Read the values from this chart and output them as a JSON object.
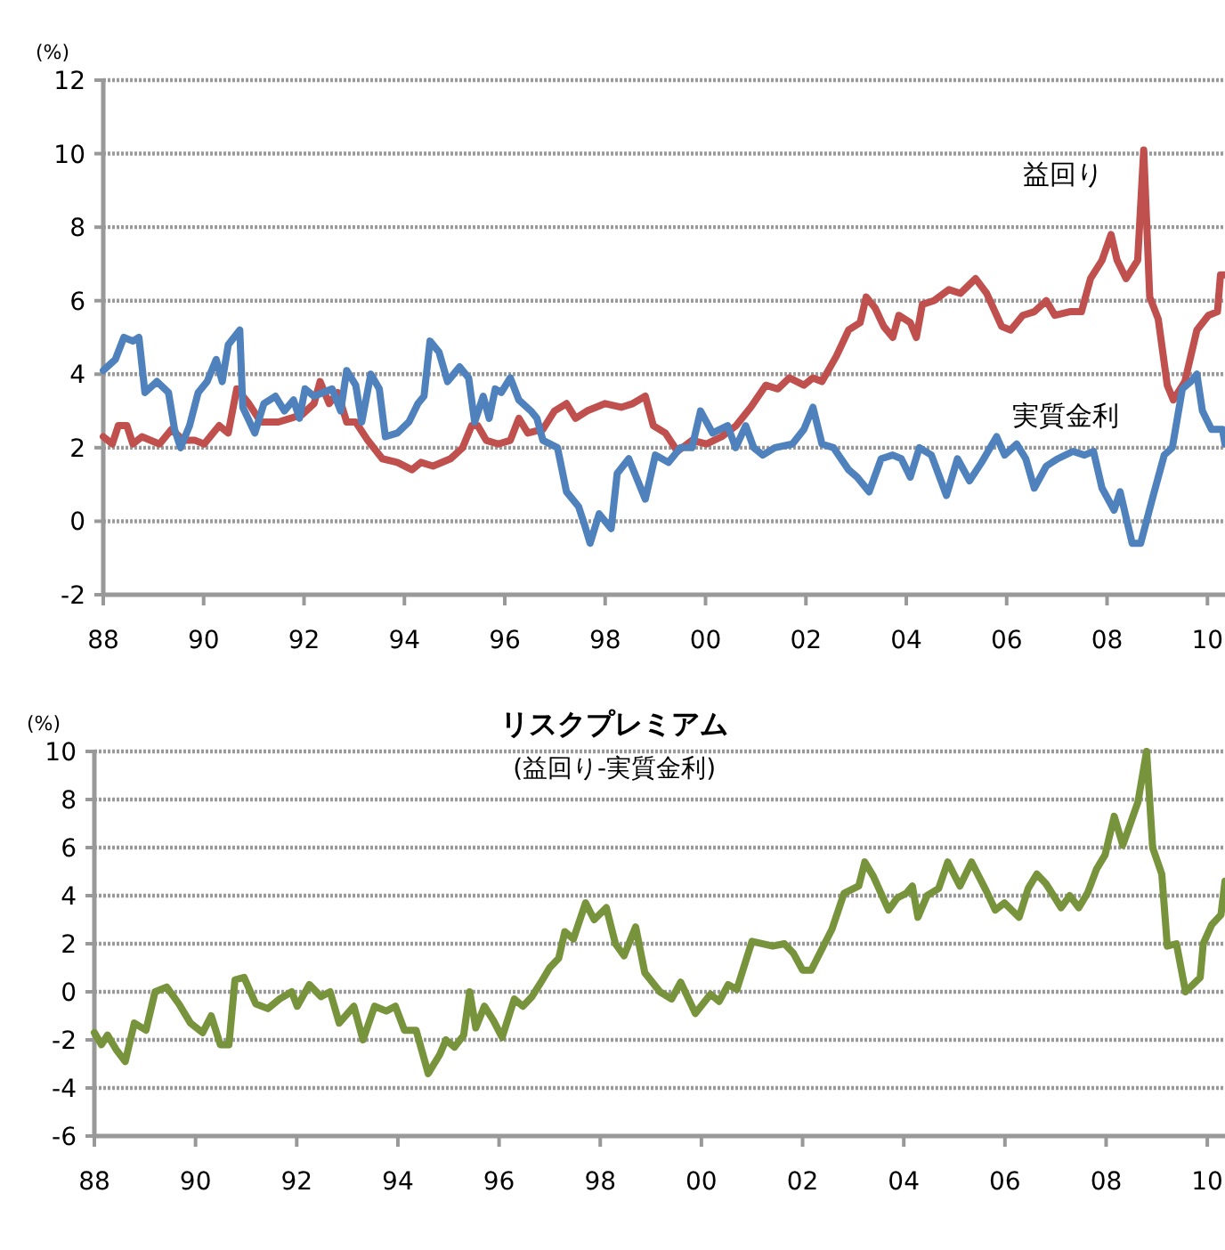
{
  "chart_data": [
    {
      "type": "line",
      "ylabel": "(%)",
      "legend": false,
      "grid": "y",
      "line_style": "solid",
      "marker": "none",
      "xlim": [
        1988,
        2010.35
      ],
      "ylim": [
        -2,
        12
      ],
      "xticks": [
        {
          "value": 1988,
          "label": "88"
        },
        {
          "value": 1990,
          "label": "90"
        },
        {
          "value": 1992,
          "label": "92"
        },
        {
          "value": 1994,
          "label": "94"
        },
        {
          "value": 1996,
          "label": "96"
        },
        {
          "value": 1998,
          "label": "98"
        },
        {
          "value": 2000,
          "label": "00"
        },
        {
          "value": 2002,
          "label": "02"
        },
        {
          "value": 2004,
          "label": "04"
        },
        {
          "value": 2006,
          "label": "06"
        },
        {
          "value": 2008,
          "label": "08"
        },
        {
          "value": 2010,
          "label": "10"
        }
      ],
      "yticks": [
        -2,
        0,
        2,
        4,
        6,
        8,
        10,
        12
      ],
      "series": [
        {
          "name": "益回り",
          "color": "#c0504d",
          "x": [
            1988.0,
            1988.18,
            1988.3,
            1988.47,
            1988.59,
            1988.77,
            1989.12,
            1989.36,
            1989.6,
            1989.83,
            1990.01,
            1990.31,
            1990.49,
            1990.66,
            1990.9,
            1991.14,
            1991.49,
            1991.73,
            1991.96,
            1992.2,
            1992.32,
            1992.5,
            1992.67,
            1992.85,
            1993.03,
            1993.27,
            1993.56,
            1993.86,
            1994.15,
            1994.33,
            1994.57,
            1994.92,
            1995.16,
            1995.34,
            1995.46,
            1995.63,
            1995.87,
            1996.11,
            1996.28,
            1996.46,
            1996.76,
            1996.99,
            1997.23,
            1997.41,
            1997.64,
            1998.0,
            1998.32,
            1998.55,
            1998.8,
            1998.96,
            1999.2,
            1999.44,
            1999.73,
            2000.02,
            2000.32,
            2000.61,
            2000.9,
            2001.2,
            2001.44,
            2001.67,
            2001.96,
            2002.14,
            2002.32,
            2002.61,
            2002.85,
            2003.08,
            2003.2,
            2003.38,
            2003.55,
            2003.73,
            2003.85,
            2004.08,
            2004.2,
            2004.32,
            2004.55,
            2004.85,
            2005.08,
            2005.38,
            2005.6,
            2005.9,
            2006.08,
            2006.32,
            2006.55,
            2006.79,
            2006.96,
            2007.26,
            2007.49,
            2007.67,
            2007.9,
            2008.08,
            2008.2,
            2008.38,
            2008.61,
            2008.73,
            2008.85,
            2009.02,
            2009.2,
            2009.32,
            2009.55,
            2009.79,
            2010.02,
            2010.2,
            2010.26,
            2010.35
          ],
          "values": [
            2.3,
            2.1,
            2.6,
            2.6,
            2.1,
            2.3,
            2.1,
            2.5,
            2.2,
            2.2,
            2.1,
            2.6,
            2.4,
            3.6,
            3.2,
            2.7,
            2.7,
            2.8,
            2.9,
            3.2,
            3.8,
            3.2,
            3.5,
            2.7,
            2.7,
            2.2,
            1.7,
            1.6,
            1.4,
            1.6,
            1.5,
            1.7,
            2.0,
            2.6,
            2.6,
            2.2,
            2.1,
            2.2,
            2.8,
            2.4,
            2.5,
            3.0,
            3.2,
            2.8,
            3.0,
            3.2,
            3.1,
            3.2,
            3.4,
            2.6,
            2.4,
            1.9,
            2.2,
            2.1,
            2.3,
            2.6,
            3.1,
            3.7,
            3.6,
            3.9,
            3.7,
            3.9,
            3.8,
            4.5,
            5.2,
            5.4,
            6.1,
            5.8,
            5.3,
            5.0,
            5.6,
            5.4,
            5.0,
            5.9,
            6.0,
            6.3,
            6.2,
            6.6,
            6.2,
            5.3,
            5.2,
            5.6,
            5.7,
            6.0,
            5.6,
            5.7,
            5.7,
            6.6,
            7.1,
            7.8,
            7.1,
            6.6,
            7.1,
            10.1,
            6.1,
            5.5,
            3.7,
            3.3,
            3.8,
            5.2,
            5.6,
            5.7,
            6.7,
            6.7
          ]
        },
        {
          "name": "実質金利",
          "color": "#4f81bd",
          "x": [
            1988.0,
            1988.24,
            1988.41,
            1988.59,
            1988.71,
            1988.83,
            1989.07,
            1989.3,
            1989.42,
            1989.54,
            1989.72,
            1989.89,
            1990.07,
            1990.25,
            1990.37,
            1990.49,
            1990.72,
            1990.78,
            1991.02,
            1991.2,
            1991.43,
            1991.61,
            1991.79,
            1991.91,
            1992.02,
            1992.2,
            1992.56,
            1992.73,
            1992.85,
            1993.03,
            1993.15,
            1993.33,
            1993.5,
            1993.62,
            1993.86,
            1994.09,
            1994.27,
            1994.39,
            1994.51,
            1994.69,
            1994.86,
            1995.1,
            1995.28,
            1995.4,
            1995.57,
            1995.69,
            1995.81,
            1995.93,
            1996.11,
            1996.28,
            1996.52,
            1996.64,
            1996.76,
            1997.05,
            1997.23,
            1997.47,
            1997.59,
            1997.7,
            1997.88,
            1998.12,
            1998.24,
            1998.47,
            1998.8,
            1999.0,
            1999.26,
            1999.5,
            1999.73,
            1999.9,
            2000.14,
            2000.44,
            2000.6,
            2000.8,
            2000.96,
            2001.14,
            2001.38,
            2001.73,
            2001.96,
            2002.14,
            2002.32,
            2002.55,
            2002.85,
            2003.02,
            2003.26,
            2003.5,
            2003.73,
            2003.9,
            2004.08,
            2004.26,
            2004.5,
            2004.8,
            2005.02,
            2005.26,
            2005.5,
            2005.8,
            2005.96,
            2006.2,
            2006.38,
            2006.55,
            2006.79,
            2007.02,
            2007.32,
            2007.55,
            2007.73,
            2007.9,
            2008.14,
            2008.26,
            2008.5,
            2008.67,
            2008.9,
            2009.14,
            2009.3,
            2009.5,
            2009.67,
            2009.79,
            2009.9,
            2010.08,
            2010.3,
            2010.35
          ],
          "values": [
            4.1,
            4.4,
            5.0,
            4.9,
            5.0,
            3.5,
            3.8,
            3.5,
            2.5,
            2.0,
            2.6,
            3.5,
            3.8,
            4.4,
            3.8,
            4.8,
            5.2,
            3.1,
            2.4,
            3.2,
            3.4,
            3.0,
            3.3,
            2.8,
            3.6,
            3.4,
            3.6,
            3.0,
            4.1,
            3.7,
            2.7,
            4.0,
            3.6,
            2.3,
            2.4,
            2.7,
            3.2,
            3.4,
            4.9,
            4.6,
            3.8,
            4.2,
            3.9,
            2.7,
            3.4,
            2.8,
            3.6,
            3.5,
            3.9,
            3.3,
            3.0,
            2.8,
            2.2,
            2.0,
            0.8,
            0.4,
            -0.1,
            -0.6,
            0.2,
            -0.2,
            1.3,
            1.7,
            0.6,
            1.8,
            1.6,
            2.0,
            2.0,
            3.0,
            2.4,
            2.6,
            2.0,
            2.6,
            2.0,
            1.8,
            2.0,
            2.1,
            2.5,
            3.1,
            2.1,
            2.0,
            1.4,
            1.2,
            0.8,
            1.7,
            1.8,
            1.7,
            1.2,
            2.0,
            1.8,
            0.7,
            1.7,
            1.1,
            1.6,
            2.3,
            1.8,
            2.1,
            1.7,
            0.9,
            1.5,
            1.7,
            1.9,
            1.8,
            1.9,
            0.9,
            0.3,
            0.8,
            -0.6,
            -0.6,
            0.6,
            1.8,
            2.0,
            3.6,
            3.8,
            4.0,
            3.0,
            2.5,
            2.5,
            2.1
          ]
        }
      ]
    },
    {
      "type": "line",
      "title": "リスクプレミアム",
      "subtitle": "(益回り-実質金利)",
      "ylabel": "(%)",
      "grid": "y",
      "line_style": "solid",
      "marker": "none",
      "xlim": [
        1988,
        2010.35
      ],
      "ylim": [
        -6,
        10
      ],
      "xticks": [
        {
          "value": 1988,
          "label": "88"
        },
        {
          "value": 1990,
          "label": "90"
        },
        {
          "value": 1992,
          "label": "92"
        },
        {
          "value": 1994,
          "label": "94"
        },
        {
          "value": 1996,
          "label": "96"
        },
        {
          "value": 1998,
          "label": "98"
        },
        {
          "value": 2000,
          "label": "00"
        },
        {
          "value": 2002,
          "label": "02"
        },
        {
          "value": 2004,
          "label": "04"
        },
        {
          "value": 2006,
          "label": "06"
        },
        {
          "value": 2008,
          "label": "08"
        },
        {
          "value": 2010,
          "label": "10"
        }
      ],
      "yticks": [
        -6,
        -4,
        -2,
        0,
        2,
        4,
        6,
        8,
        10
      ],
      "series": [
        {
          "color": "#77933c",
          "x": [
            1988.0,
            1988.14,
            1988.26,
            1988.43,
            1988.61,
            1988.79,
            1989.02,
            1989.2,
            1989.43,
            1989.67,
            1989.9,
            1990.14,
            1990.31,
            1990.49,
            1990.66,
            1990.78,
            1990.96,
            1991.19,
            1991.43,
            1991.66,
            1991.9,
            1992.01,
            1992.25,
            1992.48,
            1992.66,
            1992.84,
            1993.13,
            1993.31,
            1993.54,
            1993.77,
            1993.95,
            1994.13,
            1994.36,
            1994.6,
            1994.83,
            1994.95,
            1995.12,
            1995.3,
            1995.42,
            1995.54,
            1995.71,
            1995.89,
            1996.06,
            1996.3,
            1996.47,
            1996.65,
            1996.83,
            1997.0,
            1997.18,
            1997.3,
            1997.47,
            1997.71,
            1997.88,
            1998.12,
            1998.3,
            1998.47,
            1998.7,
            1998.88,
            1999.18,
            1999.41,
            1999.59,
            1999.88,
            2000.18,
            2000.35,
            2000.53,
            2000.7,
            2001.0,
            2001.41,
            2001.64,
            2001.82,
            2002.0,
            2002.17,
            2002.58,
            2002.82,
            2003.11,
            2003.23,
            2003.4,
            2003.7,
            2003.87,
            2004.05,
            2004.17,
            2004.28,
            2004.46,
            2004.69,
            2004.87,
            2005.11,
            2005.34,
            2005.63,
            2005.81,
            2005.99,
            2006.28,
            2006.46,
            2006.63,
            2006.81,
            2007.11,
            2007.28,
            2007.46,
            2007.63,
            2007.81,
            2007.98,
            2008.16,
            2008.33,
            2008.63,
            2008.8,
            2008.92,
            2009.1,
            2009.21,
            2009.39,
            2009.57,
            2009.86,
            2009.92,
            2010.09,
            2010.27,
            2010.35
          ],
          "values": [
            -1.7,
            -2.2,
            -1.8,
            -2.4,
            -2.9,
            -1.3,
            -1.6,
            0.0,
            0.2,
            -0.5,
            -1.3,
            -1.7,
            -1.0,
            -2.2,
            -2.2,
            0.5,
            0.6,
            -0.5,
            -0.7,
            -0.3,
            0.0,
            -0.6,
            0.3,
            -0.2,
            0.0,
            -1.3,
            -0.6,
            -2.0,
            -0.6,
            -0.8,
            -0.6,
            -1.6,
            -1.6,
            -3.4,
            -2.6,
            -2.0,
            -2.3,
            -1.8,
            0.0,
            -1.5,
            -0.6,
            -1.2,
            -1.9,
            -0.3,
            -0.6,
            -0.2,
            0.4,
            1.0,
            1.4,
            2.5,
            2.2,
            3.7,
            3.0,
            3.5,
            2.0,
            1.5,
            2.7,
            0.8,
            0.0,
            -0.3,
            0.4,
            -0.9,
            -0.1,
            -0.4,
            0.3,
            0.1,
            2.1,
            1.9,
            2.0,
            1.6,
            0.9,
            0.9,
            2.6,
            4.1,
            4.4,
            5.4,
            4.8,
            3.4,
            3.9,
            4.1,
            4.4,
            3.1,
            4.0,
            4.3,
            5.4,
            4.4,
            5.4,
            4.2,
            3.4,
            3.7,
            3.1,
            4.3,
            4.9,
            4.5,
            3.5,
            4.0,
            3.5,
            4.1,
            5.1,
            5.7,
            7.3,
            6.1,
            7.9,
            10.0,
            6.0,
            4.9,
            1.9,
            2.0,
            0.0,
            0.6,
            2.0,
            2.8,
            3.2,
            4.6
          ]
        }
      ]
    }
  ]
}
